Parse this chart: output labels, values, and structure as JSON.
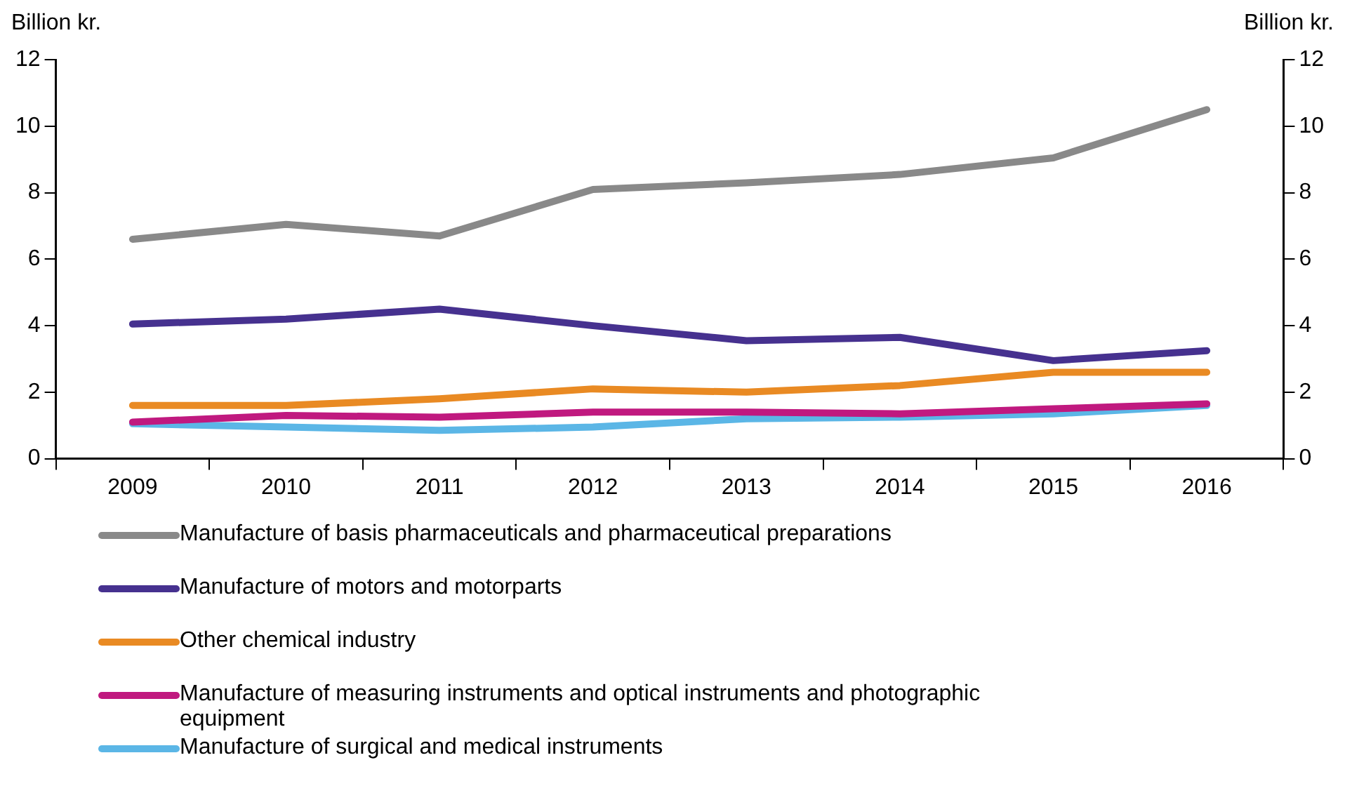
{
  "chart_data": {
    "type": "line",
    "ylabel": "Billion kr.",
    "y2label": "Billion kr.",
    "categories": [
      "2009",
      "2010",
      "2011",
      "2012",
      "2013",
      "2014",
      "2015",
      "2016"
    ],
    "series": [
      {
        "name": "Manufacture of basis pharmaceuticals and pharmaceutical preparations",
        "color": "#898989",
        "values": [
          6.6,
          7.05,
          6.7,
          8.1,
          8.3,
          8.55,
          9.05,
          10.5
        ]
      },
      {
        "name": "Manufacture of motors and motorparts",
        "color": "#46318f",
        "values": [
          4.05,
          4.2,
          4.5,
          4.0,
          3.55,
          3.65,
          2.95,
          3.25
        ]
      },
      {
        "name": "Other chemical industry",
        "color": "#e98a23",
        "values": [
          1.6,
          1.6,
          1.8,
          2.1,
          2.0,
          2.2,
          2.6,
          2.6
        ]
      },
      {
        "name": "Manufacture of measuring instruments and optical instruments and photographic equipment",
        "color": "#c0197f",
        "values": [
          1.1,
          1.3,
          1.25,
          1.4,
          1.4,
          1.35,
          1.5,
          1.65
        ]
      },
      {
        "name": "Manufacture of surgical and medical instruments",
        "color": "#5bb6e6",
        "values": [
          1.05,
          0.95,
          0.85,
          0.95,
          1.2,
          1.25,
          1.35,
          1.6
        ]
      }
    ],
    "ylim": [
      0,
      12
    ],
    "yticks": [
      0,
      2,
      4,
      6,
      8,
      10,
      12
    ],
    "y2lim": [
      0,
      12
    ],
    "y2ticks": [
      0,
      2,
      4,
      6,
      8,
      10,
      12
    ],
    "grid": false,
    "legend": "bottom",
    "marker": "none",
    "line_style": "solid"
  }
}
